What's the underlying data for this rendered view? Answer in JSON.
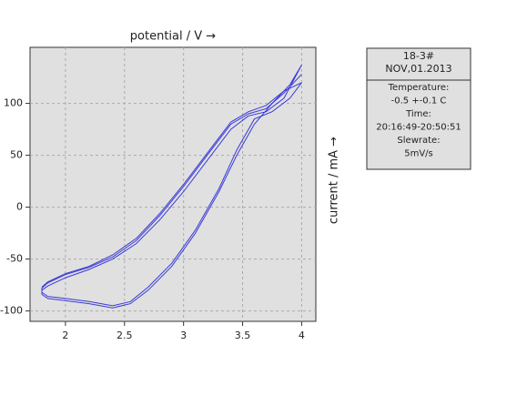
{
  "chart_data": {
    "type": "line",
    "x_label": "potential / V →",
    "y_label": "current / mA →",
    "xlim": [
      1.7,
      4.12
    ],
    "ylim": [
      -110,
      154
    ],
    "xticks": [
      2,
      2.5,
      3,
      3.5,
      4
    ],
    "yticks": [
      -100,
      -50,
      0,
      50,
      100
    ],
    "grid": true,
    "series": [
      {
        "color": "#3a3ad8",
        "x": [
          4.0,
          3.85,
          3.7,
          3.55,
          3.4,
          3.2,
          3.0,
          2.8,
          2.6,
          2.4,
          2.2,
          2.0,
          1.85,
          1.8,
          1.8,
          1.85,
          2.0,
          2.2,
          2.4,
          2.55,
          2.7,
          2.9,
          3.1,
          3.3,
          3.45,
          3.6,
          3.75,
          3.9,
          4.0
        ],
        "values": [
          137,
          105,
          92,
          88,
          75,
          45,
          15,
          -12,
          -35,
          -50,
          -60,
          -68,
          -76,
          -80,
          -84,
          -88,
          -90,
          -93,
          -97,
          -93,
          -80,
          -57,
          -25,
          15,
          50,
          80,
          100,
          118,
          137
        ]
      },
      {
        "color": "#3a3ad8",
        "x": [
          4.0,
          3.85,
          3.7,
          3.55,
          3.4,
          3.2,
          3.0,
          2.8,
          2.6,
          2.4,
          2.2,
          2.0,
          1.85,
          1.8,
          1.8,
          1.85,
          2.0,
          2.2,
          2.4,
          2.55,
          2.7,
          2.9,
          3.1,
          3.3,
          3.45,
          3.6,
          3.75,
          3.9,
          4.0
        ],
        "values": [
          128,
          110,
          95,
          90,
          80,
          50,
          20,
          -8,
          -32,
          -48,
          -58,
          -65,
          -73,
          -78,
          -82,
          -86,
          -88,
          -91,
          -95,
          -91,
          -77,
          -54,
          -22,
          18,
          55,
          85,
          92,
          105,
          120
        ]
      },
      {
        "color": "#3a3ad8",
        "x": [
          4.0,
          3.85,
          3.7,
          3.55,
          3.4,
          3.2,
          3.0,
          2.8,
          2.6,
          2.4,
          2.2,
          2.0,
          1.85,
          1.8
        ],
        "values": [
          120,
          112,
          98,
          92,
          82,
          52,
          22,
          -6,
          -30,
          -46,
          -57,
          -64,
          -72,
          -77
        ]
      }
    ],
    "info_box": {
      "header": [
        "18-3#",
        "NOV,01.2013"
      ],
      "lines": [
        "Temperature:",
        "-0.5 +-0.1 C",
        "Time:",
        "20:16:49-20:50:51",
        "Slewrate:",
        "5mV/s"
      ]
    }
  }
}
